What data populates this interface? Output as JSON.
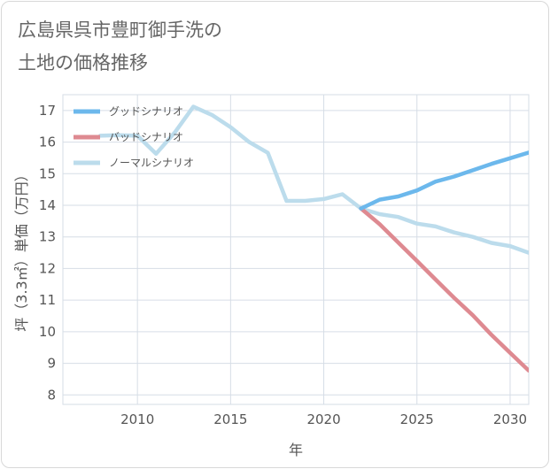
{
  "title": {
    "line1": "広島県呉市豊町御手洗の",
    "line2": "土地の価格推移"
  },
  "chart_data": {
    "type": "line",
    "xlabel": "年",
    "ylabel": "坪（3.3㎡）単価（万円）",
    "xlim": [
      2006,
      2031
    ],
    "ylim": [
      7.7,
      17.5
    ],
    "x_ticks": [
      2010,
      2015,
      2020,
      2025,
      2030
    ],
    "y_ticks": [
      8,
      9,
      10,
      11,
      12,
      13,
      14,
      15,
      16,
      17
    ],
    "grid": true,
    "legend_position": "top-left",
    "series": [
      {
        "name": "グッドシナリオ",
        "color": "#6cb8ec",
        "x": [
          2022,
          2023,
          2024,
          2025,
          2026,
          2027,
          2028,
          2029,
          2030,
          2031
        ],
        "y": [
          13.9,
          14.18,
          14.28,
          14.47,
          14.75,
          14.91,
          15.11,
          15.31,
          15.49,
          15.67
        ]
      },
      {
        "name": "バッドシナリオ",
        "color": "#de8a91",
        "x": [
          2022,
          2023,
          2024,
          2025,
          2026,
          2027,
          2028,
          2029,
          2030,
          2031
        ],
        "y": [
          13.9,
          13.4,
          12.82,
          12.24,
          11.65,
          11.07,
          10.52,
          9.9,
          9.33,
          8.77
        ]
      },
      {
        "name": "ノーマルシナリオ",
        "color": "#bcdcec",
        "x": [
          2008,
          2009,
          2010,
          2011,
          2012,
          2013,
          2014,
          2015,
          2016,
          2017,
          2018,
          2019,
          2020,
          2021,
          2022,
          2023,
          2024,
          2025,
          2026,
          2027,
          2028,
          2029,
          2030,
          2031
        ],
        "y": [
          16.2,
          16.22,
          16.2,
          15.63,
          16.3,
          17.12,
          16.86,
          16.47,
          16.0,
          15.66,
          14.14,
          14.14,
          14.2,
          14.35,
          13.9,
          13.72,
          13.63,
          13.42,
          13.33,
          13.14,
          13.0,
          12.81,
          12.71,
          12.5
        ]
      }
    ]
  }
}
